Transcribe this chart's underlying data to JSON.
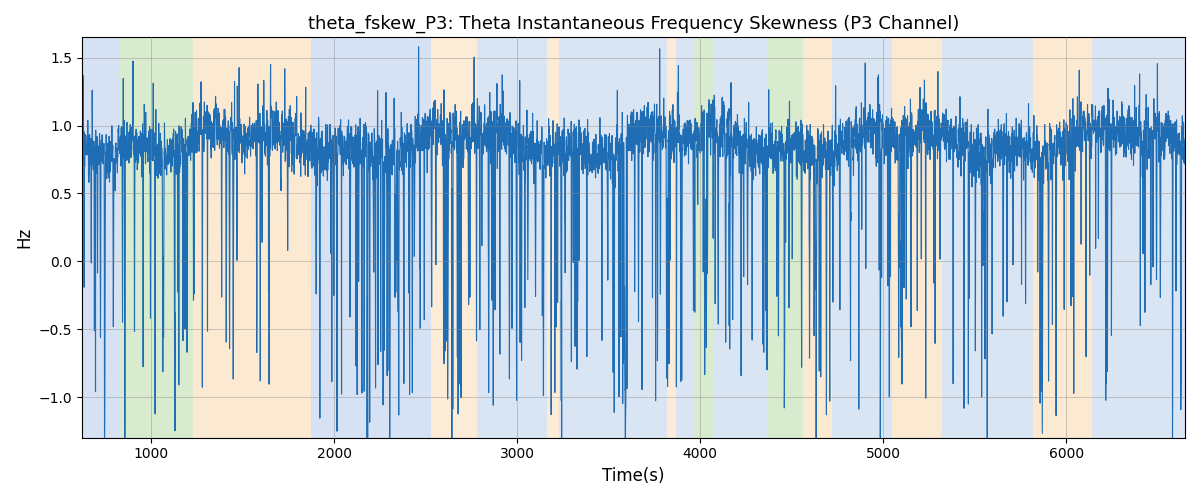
{
  "title": "theta_fskew_P3: Theta Instantaneous Frequency Skewness (P3 Channel)",
  "xlabel": "Time(s)",
  "ylabel": "Hz",
  "xlim": [
    620,
    6650
  ],
  "ylim": [
    -1.3,
    1.65
  ],
  "yticks": [
    -1.0,
    -0.5,
    0.0,
    0.5,
    1.0,
    1.5
  ],
  "xticks": [
    1000,
    2000,
    3000,
    4000,
    5000,
    6000
  ],
  "line_color": "#1f6eb5",
  "line_width": 0.8,
  "bands": [
    {
      "start": 620,
      "end": 830,
      "color": "#aec6e8",
      "alpha": 0.5
    },
    {
      "start": 830,
      "end": 1230,
      "color": "#b2d9a0",
      "alpha": 0.5
    },
    {
      "start": 1230,
      "end": 1870,
      "color": "#fad4a6",
      "alpha": 0.5
    },
    {
      "start": 1870,
      "end": 2530,
      "color": "#aec6e8",
      "alpha": 0.5
    },
    {
      "start": 2530,
      "end": 2780,
      "color": "#fad4a6",
      "alpha": 0.45
    },
    {
      "start": 2780,
      "end": 3160,
      "color": "#aec6e8",
      "alpha": 0.45
    },
    {
      "start": 3160,
      "end": 3230,
      "color": "#fad4a6",
      "alpha": 0.45
    },
    {
      "start": 3230,
      "end": 3820,
      "color": "#aec6e8",
      "alpha": 0.45
    },
    {
      "start": 3820,
      "end": 3870,
      "color": "#fad4a6",
      "alpha": 0.45
    },
    {
      "start": 3870,
      "end": 3960,
      "color": "#aec6e8",
      "alpha": 0.45
    },
    {
      "start": 3960,
      "end": 4070,
      "color": "#b2d9a0",
      "alpha": 0.5
    },
    {
      "start": 4070,
      "end": 4370,
      "color": "#aec6e8",
      "alpha": 0.45
    },
    {
      "start": 4370,
      "end": 4560,
      "color": "#b2d9a0",
      "alpha": 0.5
    },
    {
      "start": 4560,
      "end": 4720,
      "color": "#fad4a6",
      "alpha": 0.5
    },
    {
      "start": 4720,
      "end": 5050,
      "color": "#aec6e8",
      "alpha": 0.45
    },
    {
      "start": 5050,
      "end": 5320,
      "color": "#fad4a6",
      "alpha": 0.5
    },
    {
      "start": 5320,
      "end": 5820,
      "color": "#aec6e8",
      "alpha": 0.45
    },
    {
      "start": 5820,
      "end": 6140,
      "color": "#fad4a6",
      "alpha": 0.5
    },
    {
      "start": 6140,
      "end": 6650,
      "color": "#aec6e8",
      "alpha": 0.45
    }
  ],
  "seed": 99,
  "n_points": 6000,
  "t_start": 620,
  "t_end": 6650
}
